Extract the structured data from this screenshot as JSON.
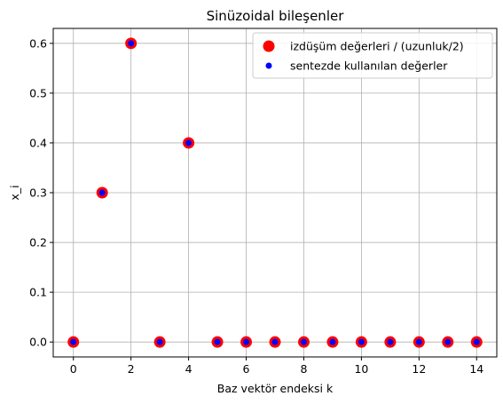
{
  "chart_data": {
    "type": "scatter",
    "title": "Sinüzoidal bileşenler",
    "xlabel": "Baz vektör endeksi k",
    "ylabel": "x_i",
    "xlim": [
      -0.7,
      14.7
    ],
    "ylim": [
      -0.03,
      0.63
    ],
    "xticks": [
      0,
      2,
      4,
      6,
      8,
      10,
      12,
      14
    ],
    "yticks": [
      0.0,
      0.1,
      0.2,
      0.3,
      0.4,
      0.5,
      0.6
    ],
    "xtick_labels": [
      "0",
      "2",
      "4",
      "6",
      "8",
      "10",
      "12",
      "14"
    ],
    "ytick_labels": [
      "0.0",
      "0.1",
      "0.2",
      "0.3",
      "0.4",
      "0.5",
      "0.6"
    ],
    "grid": true,
    "legend_position": "top-right",
    "x": [
      0,
      1,
      2,
      3,
      4,
      5,
      6,
      7,
      8,
      9,
      10,
      11,
      12,
      13,
      14
    ],
    "series": [
      {
        "name": "izdüşüm değerleri / (uzunluk/2)",
        "color": "#ff0000",
        "marker": "large-circle",
        "values": [
          0.0,
          0.3,
          0.6,
          0.0,
          0.4,
          0.0,
          0.0,
          0.0,
          0.0,
          0.0,
          0.0,
          0.0,
          0.0,
          0.0,
          0.0
        ]
      },
      {
        "name": "sentezde kullanılan değerler",
        "color": "#0000ff",
        "marker": "small-circle",
        "values": [
          0.0,
          0.3,
          0.6,
          0.0,
          0.4,
          0.0,
          0.0,
          0.0,
          0.0,
          0.0,
          0.0,
          0.0,
          0.0,
          0.0,
          0.0
        ]
      }
    ]
  }
}
